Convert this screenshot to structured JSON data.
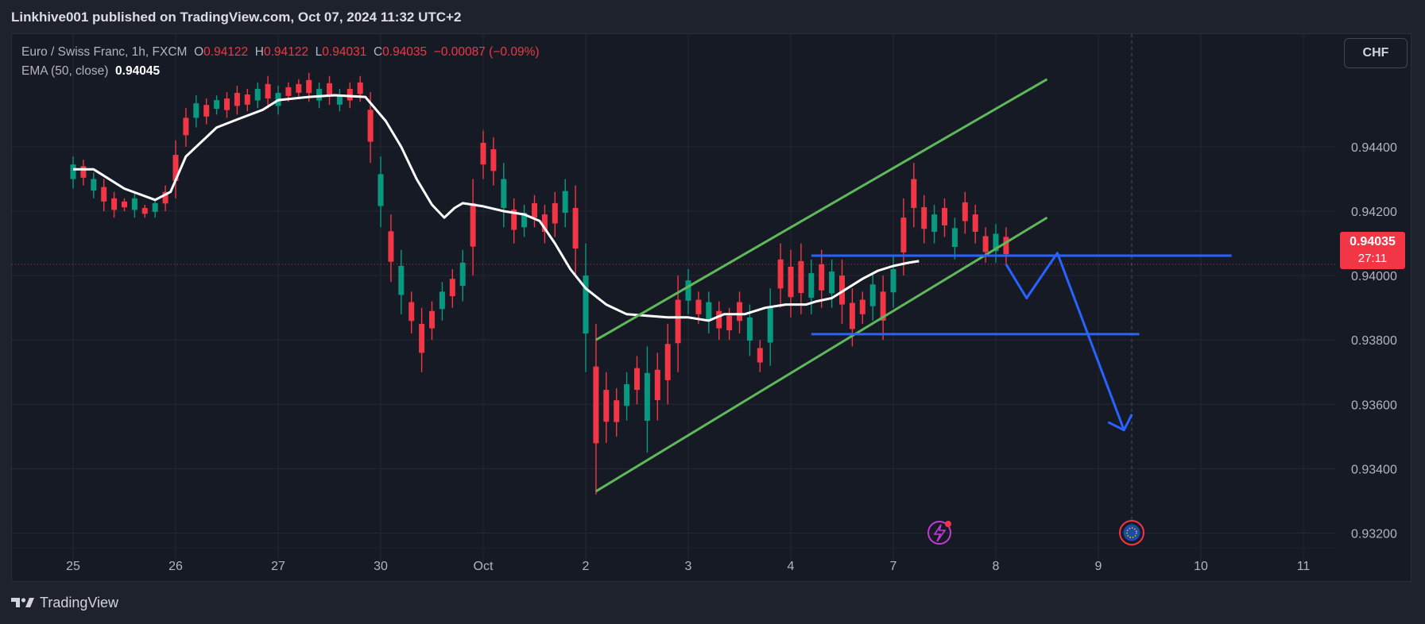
{
  "header": {
    "publisher_line": "Linkhive001 published on TradingView.com, Oct 07, 2024 11:32 UTC+2"
  },
  "legend": {
    "symbol": "Euro / Swiss Franc, 1h, FXCM",
    "o_label": "O",
    "o_value": "0.94122",
    "h_label": "H",
    "h_value": "0.94122",
    "l_label": "L",
    "l_value": "0.94031",
    "c_label": "C",
    "c_value": "0.94035",
    "change": "−0.00087 (−0.09%)",
    "ema_label": "EMA (50, close)",
    "ema_value": "0.94045"
  },
  "currency_button": "CHF",
  "last_price": {
    "price": "0.94035",
    "countdown": "27:11"
  },
  "brand": {
    "name": "TradingView"
  },
  "colors": {
    "up": "#089981",
    "down": "#f23645",
    "ema": "#ffffff",
    "channel": "#5fb85a",
    "projection": "#2962ff"
  },
  "icons": [
    "lightning-event-icon",
    "eu-flag-event-icon",
    "tradingview-logo-icon"
  ],
  "chart_data": {
    "type": "candlestick",
    "title": "Euro / Swiss Franc, 1h, FXCM",
    "x_ticks": [
      "25",
      "26",
      "27",
      "30",
      "Oct",
      "2",
      "3",
      "4",
      "7",
      "8",
      "9",
      "10",
      "11"
    ],
    "y_ticks": [
      "0.94400",
      "0.94200",
      "0.94000",
      "0.93800",
      "0.93600",
      "0.93400",
      "0.93200"
    ],
    "ylim": [
      0.9311,
      0.9475
    ],
    "grid": true,
    "series": [
      {
        "name": "EMA (50, close)",
        "type": "line",
        "points": [
          [
            0.0,
            0.9433
          ],
          [
            0.2,
            0.9433
          ],
          [
            0.5,
            0.9427
          ],
          [
            0.8,
            0.94235
          ],
          [
            0.95,
            0.9426
          ],
          [
            1.1,
            0.9437
          ],
          [
            1.4,
            0.9446
          ],
          [
            1.6,
            0.94485
          ],
          [
            1.85,
            0.94515
          ],
          [
            2.0,
            0.94545
          ],
          [
            2.3,
            0.94555
          ],
          [
            2.55,
            0.9456
          ],
          [
            2.85,
            0.94555
          ],
          [
            3.05,
            0.9448
          ],
          [
            3.2,
            0.944
          ],
          [
            3.35,
            0.943
          ],
          [
            3.5,
            0.9422
          ],
          [
            3.62,
            0.9418
          ],
          [
            3.72,
            0.9421
          ],
          [
            3.8,
            0.94225
          ],
          [
            4.0,
            0.94215
          ],
          [
            4.2,
            0.942
          ],
          [
            4.4,
            0.9419
          ],
          [
            4.55,
            0.9417
          ],
          [
            4.7,
            0.941
          ],
          [
            4.85,
            0.9402
          ],
          [
            5.0,
            0.9396
          ],
          [
            5.2,
            0.9391
          ],
          [
            5.4,
            0.9388
          ],
          [
            5.6,
            0.93875
          ],
          [
            5.8,
            0.9387
          ],
          [
            6.0,
            0.9387
          ],
          [
            6.2,
            0.9386
          ],
          [
            6.35,
            0.9388
          ],
          [
            6.55,
            0.9388
          ],
          [
            6.75,
            0.939
          ],
          [
            6.95,
            0.9391
          ],
          [
            7.15,
            0.9391
          ],
          [
            7.25,
            0.9392
          ],
          [
            7.4,
            0.9393
          ],
          [
            7.55,
            0.9396
          ],
          [
            7.7,
            0.9399
          ],
          [
            7.85,
            0.94015
          ],
          [
            8.0,
            0.9403
          ],
          [
            8.15,
            0.9404
          ],
          [
            8.25,
            0.94045
          ]
        ]
      },
      {
        "name": "EURCHF 1h",
        "type": "candles",
        "candles": [
          [
            0.0,
            0.9437,
            0.9427
          ],
          [
            0.1,
            0.9436,
            0.9428
          ],
          [
            0.2,
            0.9432,
            0.9424
          ],
          [
            0.3,
            0.943,
            0.942
          ],
          [
            0.4,
            0.9426,
            0.9418
          ],
          [
            0.5,
            0.9424,
            0.942
          ],
          [
            0.6,
            0.9426,
            0.9418
          ],
          [
            0.7,
            0.9422,
            0.9418
          ],
          [
            0.8,
            0.9424,
            0.9418
          ],
          [
            0.9,
            0.9428,
            0.942
          ],
          [
            1.0,
            0.9442,
            0.9424
          ],
          [
            1.1,
            0.9452,
            0.944
          ],
          [
            1.2,
            0.9456,
            0.9446
          ],
          [
            1.3,
            0.9455,
            0.9447
          ],
          [
            1.4,
            0.9456,
            0.945
          ],
          [
            1.5,
            0.9457,
            0.9449
          ],
          [
            1.6,
            0.9459,
            0.945
          ],
          [
            1.7,
            0.9458,
            0.9451
          ],
          [
            1.8,
            0.946,
            0.9452
          ],
          [
            1.9,
            0.9462,
            0.9452
          ],
          [
            2.0,
            0.9459,
            0.945
          ],
          [
            2.1,
            0.946,
            0.9454
          ],
          [
            2.2,
            0.9461,
            0.9455
          ],
          [
            2.3,
            0.9463,
            0.9454
          ],
          [
            2.4,
            0.946,
            0.9452
          ],
          [
            2.5,
            0.9462,
            0.9453
          ],
          [
            2.6,
            0.9458,
            0.9451
          ],
          [
            2.7,
            0.946,
            0.9452
          ],
          [
            2.8,
            0.9462,
            0.9454
          ],
          [
            2.9,
            0.9457,
            0.9435
          ],
          [
            3.0,
            0.9437,
            0.9415
          ],
          [
            3.1,
            0.9419,
            0.9398
          ],
          [
            3.2,
            0.9408,
            0.9388
          ],
          [
            3.3,
            0.9395,
            0.9382
          ],
          [
            3.4,
            0.939,
            0.937
          ],
          [
            3.5,
            0.9392,
            0.938
          ],
          [
            3.6,
            0.9398,
            0.9386
          ],
          [
            3.7,
            0.9402,
            0.939
          ],
          [
            3.8,
            0.9408,
            0.9392
          ],
          [
            3.9,
            0.943,
            0.94
          ],
          [
            4.0,
            0.9445,
            0.943
          ],
          [
            4.1,
            0.9443,
            0.9428
          ],
          [
            4.2,
            0.9435,
            0.9415
          ],
          [
            4.3,
            0.9424,
            0.941
          ],
          [
            4.4,
            0.9422,
            0.9412
          ],
          [
            4.5,
            0.9425,
            0.9415
          ],
          [
            4.6,
            0.9422,
            0.941
          ],
          [
            4.7,
            0.9426,
            0.9412
          ],
          [
            4.8,
            0.943,
            0.9415
          ],
          [
            4.9,
            0.9428,
            0.94
          ],
          [
            5.0,
            0.941,
            0.937
          ],
          [
            5.1,
            0.9385,
            0.9332
          ],
          [
            5.2,
            0.937,
            0.9348
          ],
          [
            5.3,
            0.9365,
            0.935
          ],
          [
            5.4,
            0.937,
            0.9355
          ],
          [
            5.5,
            0.9375,
            0.936
          ],
          [
            5.6,
            0.9378,
            0.9345
          ],
          [
            5.7,
            0.9376,
            0.9355
          ],
          [
            5.8,
            0.9385,
            0.936
          ],
          [
            5.9,
            0.94,
            0.937
          ],
          [
            6.0,
            0.9402,
            0.9388
          ],
          [
            6.1,
            0.9395,
            0.9385
          ],
          [
            6.2,
            0.9395,
            0.9382
          ],
          [
            6.3,
            0.9392,
            0.938
          ],
          [
            6.4,
            0.939,
            0.938
          ],
          [
            6.5,
            0.9395,
            0.9382
          ],
          [
            6.6,
            0.9391,
            0.9375
          ],
          [
            6.7,
            0.938,
            0.937
          ],
          [
            6.8,
            0.9396,
            0.9372
          ],
          [
            6.9,
            0.941,
            0.939
          ],
          [
            7.0,
            0.9408,
            0.9387
          ],
          [
            7.1,
            0.941,
            0.9388
          ],
          [
            7.2,
            0.9405,
            0.9388
          ],
          [
            7.3,
            0.9408,
            0.939
          ],
          [
            7.4,
            0.9405,
            0.939
          ],
          [
            7.5,
            0.9405,
            0.9385
          ],
          [
            7.6,
            0.9396,
            0.9378
          ],
          [
            7.7,
            0.9395,
            0.9385
          ],
          [
            7.8,
            0.9401,
            0.9386
          ],
          [
            7.9,
            0.94,
            0.938
          ],
          [
            8.0,
            0.9406,
            0.939
          ],
          [
            8.1,
            0.9424,
            0.94
          ],
          [
            8.2,
            0.9435,
            0.9415
          ],
          [
            8.3,
            0.9425,
            0.941
          ],
          [
            8.4,
            0.9422,
            0.941
          ],
          [
            8.5,
            0.9424,
            0.9412
          ],
          [
            8.6,
            0.9418,
            0.9405
          ],
          [
            8.7,
            0.9426,
            0.9413
          ],
          [
            8.8,
            0.9422,
            0.941
          ],
          [
            8.9,
            0.9415,
            0.9404
          ],
          [
            9.0,
            0.9416,
            0.9404
          ],
          [
            9.1,
            0.9415,
            0.94031
          ]
        ]
      }
    ],
    "drawings": [
      {
        "kind": "channel",
        "color": "#5fb85a",
        "lines": [
          [
            [
              5.1,
              0.938
            ],
            [
              9.5,
              0.9461
            ]
          ],
          [
            [
              5.1,
              0.9333
            ],
            [
              9.5,
              0.9418
            ]
          ]
        ]
      },
      {
        "kind": "level",
        "color": "#2962ff",
        "value": 0.94062,
        "from": 7.2,
        "to": 11.3
      },
      {
        "kind": "level",
        "color": "#2962ff",
        "value": 0.93818,
        "from": 7.2,
        "to": 10.4
      },
      {
        "kind": "projection",
        "color": "#2962ff",
        "path": [
          [
            9.1,
            0.94035
          ],
          [
            9.3,
            0.9393
          ],
          [
            9.6,
            0.9407
          ],
          [
            10.25,
            0.9352
          ]
        ]
      }
    ],
    "last_price_value": 0.94035
  }
}
